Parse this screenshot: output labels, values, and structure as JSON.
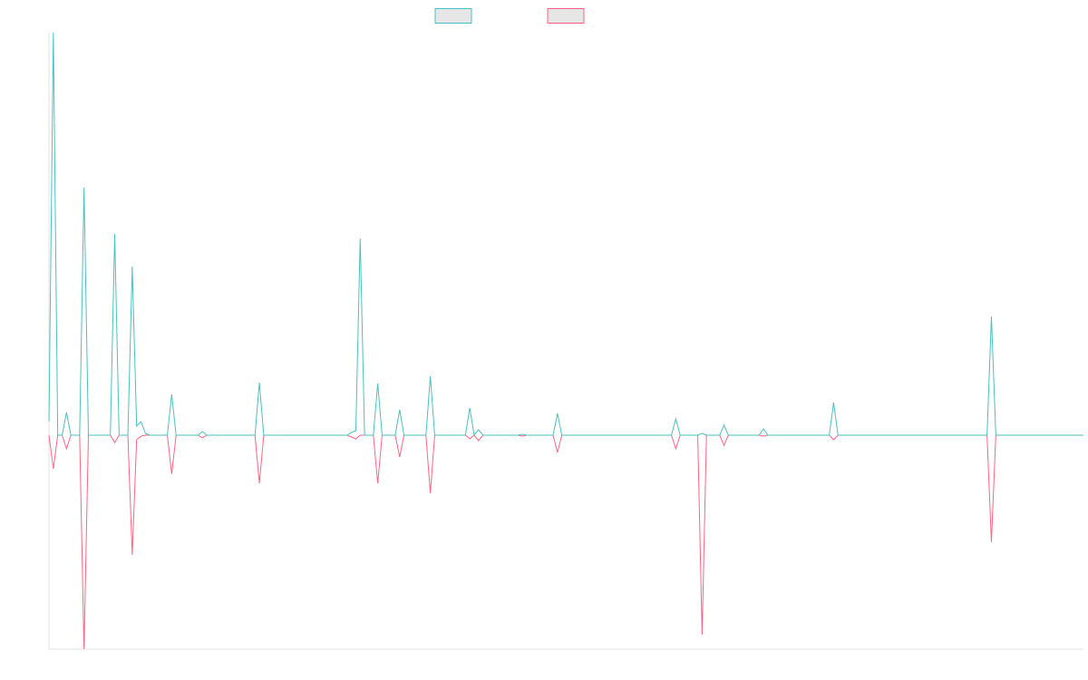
{
  "chart_data": {
    "type": "line",
    "x": [
      0,
      1,
      2,
      3,
      4,
      5,
      7,
      8,
      9,
      14,
      15,
      16,
      18,
      19,
      20,
      21,
      22,
      23,
      27,
      28,
      29,
      34,
      35,
      36,
      47,
      48,
      49,
      68,
      69,
      70,
      71,
      72,
      74,
      75,
      76,
      79,
      80,
      81,
      86,
      87,
      88,
      95,
      96,
      97,
      98,
      99,
      107,
      108,
      109,
      115,
      116,
      117,
      142,
      143,
      144,
      148,
      149,
      150,
      153,
      154,
      155,
      162,
      163,
      164,
      178,
      179,
      180,
      214,
      215,
      216,
      236
    ],
    "xlim": [
      0,
      236
    ],
    "ylim": [
      -236,
      444
    ],
    "series": [
      {
        "color": "#4bc0c0",
        "values": [
          15,
          444,
          0,
          0,
          25,
          0,
          0,
          273,
          0,
          0,
          222,
          0,
          0,
          186,
          10,
          15,
          2,
          0,
          0,
          45,
          0,
          0,
          4,
          0,
          0,
          58,
          0,
          0,
          3,
          5,
          217,
          0,
          0,
          57,
          0,
          0,
          28,
          0,
          0,
          65,
          0,
          0,
          30,
          0,
          6,
          0,
          0,
          1,
          0,
          0,
          24,
          0,
          0,
          18,
          0,
          0,
          2,
          0,
          0,
          11,
          0,
          0,
          7,
          0,
          0,
          36,
          0,
          0,
          131,
          0,
          0
        ]
      },
      {
        "color": "#ff6384",
        "values": [
          0,
          -37,
          0,
          0,
          -15,
          0,
          0,
          -236,
          0,
          0,
          -8,
          0,
          0,
          -132,
          -5,
          -1,
          0,
          0,
          0,
          -43,
          0,
          0,
          -3,
          0,
          0,
          -53,
          0,
          0,
          -2,
          -4,
          0,
          0,
          0,
          -53,
          0,
          0,
          -24,
          0,
          0,
          -64,
          0,
          0,
          -4,
          0,
          -6,
          0,
          0,
          -1,
          0,
          0,
          -19,
          0,
          0,
          -15,
          0,
          0,
          -220,
          0,
          0,
          -11,
          0,
          0,
          -1,
          0,
          0,
          -5,
          0,
          0,
          -118,
          0,
          0
        ]
      }
    ]
  }
}
